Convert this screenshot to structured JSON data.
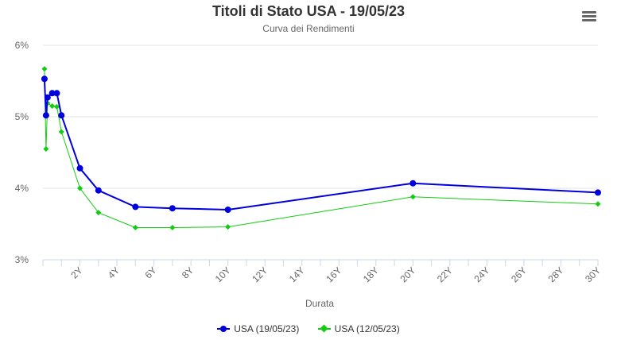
{
  "title": "Titoli di Stato USA - 19/05/23",
  "subtitle": "Curva dei Rendimenti",
  "menu_icon": "hamburger-menu-icon",
  "chart_data": {
    "type": "line",
    "title": "Titoli di Stato USA - 19/05/23",
    "subtitle": "Curva dei Rendimenti",
    "xlabel": "Durata",
    "ylabel": "",
    "xlim": [
      0,
      30
    ],
    "ylim": [
      3,
      6
    ],
    "x_ticks": [
      2,
      4,
      6,
      8,
      10,
      12,
      14,
      16,
      18,
      20,
      22,
      24,
      26,
      28,
      30
    ],
    "x_tick_labels": [
      "2Y",
      "4Y",
      "6Y",
      "8Y",
      "10Y",
      "12Y",
      "14Y",
      "16Y",
      "18Y",
      "20Y",
      "22Y",
      "24Y",
      "26Y",
      "28Y",
      "30Y"
    ],
    "y_ticks": [
      3,
      4,
      5,
      6
    ],
    "y_tick_labels": [
      "3%",
      "4%",
      "5%",
      "6%"
    ],
    "grid": "horizontal",
    "legend_position": "bottom-center",
    "series": [
      {
        "name": "USA (19/05/23)",
        "color": "#0000dd",
        "marker": "circle",
        "x": [
          0.083,
          0.167,
          0.25,
          0.5,
          0.75,
          1,
          2,
          3,
          5,
          7,
          10,
          20,
          30
        ],
        "y": [
          5.53,
          5.02,
          5.27,
          5.33,
          5.33,
          5.02,
          4.28,
          3.97,
          3.74,
          3.72,
          3.7,
          4.07,
          3.94
        ]
      },
      {
        "name": "USA (12/05/23)",
        "color": "#11cc11",
        "marker": "diamond",
        "x": [
          0.083,
          0.167,
          0.25,
          0.5,
          0.75,
          1,
          2,
          3,
          5,
          7,
          10,
          20,
          30
        ],
        "y": [
          5.67,
          4.55,
          5.19,
          5.15,
          5.14,
          4.79,
          4.0,
          3.66,
          3.45,
          3.45,
          3.46,
          3.88,
          3.78
        ]
      }
    ]
  }
}
